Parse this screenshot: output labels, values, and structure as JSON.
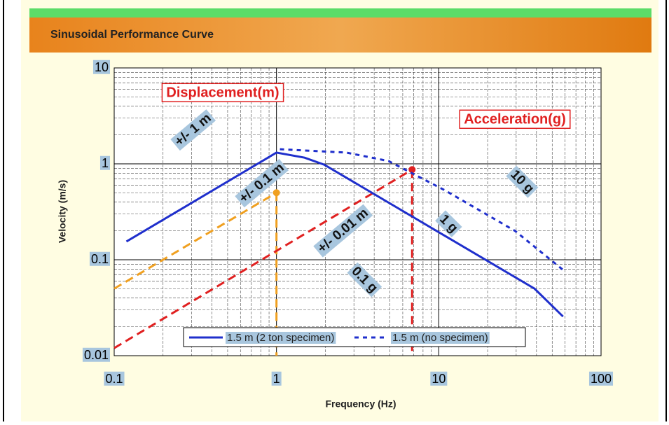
{
  "header": {
    "title": "Sinusoidal Performance Curve"
  },
  "chart_data": {
    "type": "line",
    "xlabel": "Frequency (Hz)",
    "ylabel": "Velocity (m/s)",
    "xscale": "log",
    "yscale": "log",
    "xlim": [
      0.1,
      100
    ],
    "ylim": [
      0.01,
      10
    ],
    "xticks": [
      0.1,
      1,
      10,
      100
    ],
    "yticks": [
      0.01,
      0.1,
      1,
      10
    ],
    "grid": true,
    "legend": "bottom",
    "series": [
      {
        "name": "1.5 m (2 ton specimen)",
        "color": "#1f2fcc",
        "style": "solid",
        "x": [
          0.119,
          1,
          1.49,
          1.97,
          38.9,
          58.3
        ],
        "values": [
          0.155,
          1.31,
          1.16,
          0.98,
          0.05,
          0.0256
        ]
      },
      {
        "name": "1.5 m (no specimen)",
        "color": "#1f2fcc",
        "style": "dotted",
        "x": [
          1.05,
          2.7,
          4.9,
          10.9,
          29.5,
          58
        ],
        "values": [
          1.42,
          1.31,
          1.07,
          0.53,
          0.2,
          0.079
        ]
      }
    ],
    "reference_lines": [
      {
        "color": "#f0a020",
        "x": [
          0.1,
          1
        ],
        "values": [
          0.05,
          0.5
        ]
      },
      {
        "color": "#e02020",
        "x": [
          0.1,
          6.85
        ],
        "values": [
          0.012,
          0.87
        ]
      }
    ],
    "annotations": [
      "Displacement(m)",
      "Acceleration(g)",
      "+/- 1 m",
      "+/- 0.1 m",
      "+/- 0.01 m",
      "0.1 g",
      "1 g",
      "10 g"
    ]
  }
}
